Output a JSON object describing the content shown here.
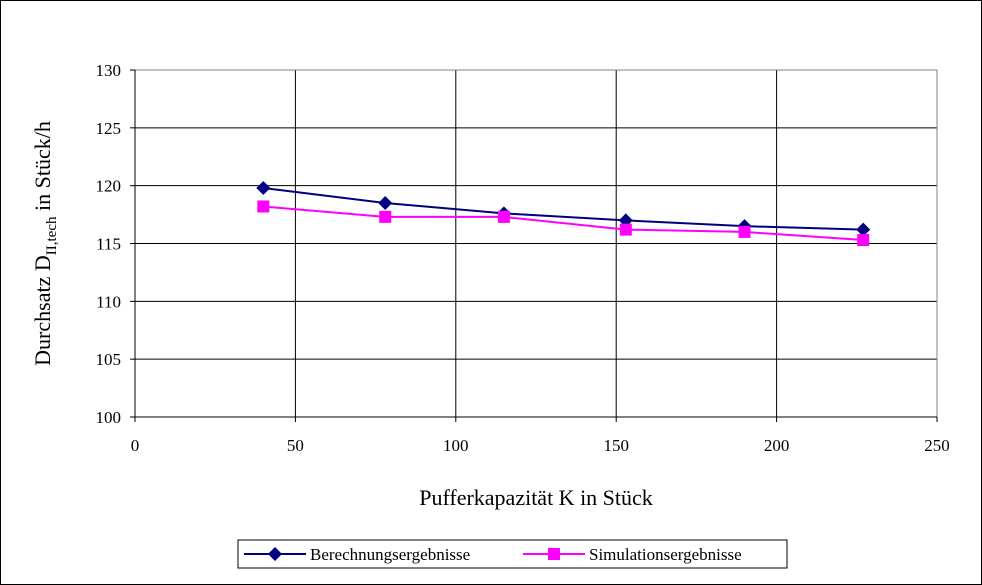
{
  "chart_data": {
    "type": "line",
    "title": "",
    "xlabel": "Pufferkapazität K in Stück",
    "ylabel": {
      "prefix": "Durchsatz D",
      "subscript": "II,tech",
      "suffix": " in Stück/h"
    },
    "xlim": [
      0,
      250
    ],
    "ylim": [
      100,
      130
    ],
    "xticks": [
      0,
      50,
      100,
      150,
      200,
      250
    ],
    "yticks": [
      100,
      105,
      110,
      115,
      120,
      125,
      130
    ],
    "grid": true,
    "legend_position": "bottom",
    "series": [
      {
        "name": "Berechnungsergebnisse",
        "color": "#000080",
        "marker": "diamond",
        "x": [
          40,
          78,
          115,
          153,
          190,
          227
        ],
        "y": [
          119.8,
          118.5,
          117.6,
          117.0,
          116.5,
          116.2
        ]
      },
      {
        "name": "Simulationsergebnisse",
        "color": "#FF00FF",
        "marker": "square",
        "x": [
          40,
          78,
          115,
          153,
          190,
          227
        ],
        "y": [
          118.2,
          117.3,
          117.3,
          116.2,
          116.0,
          115.3
        ]
      }
    ]
  }
}
